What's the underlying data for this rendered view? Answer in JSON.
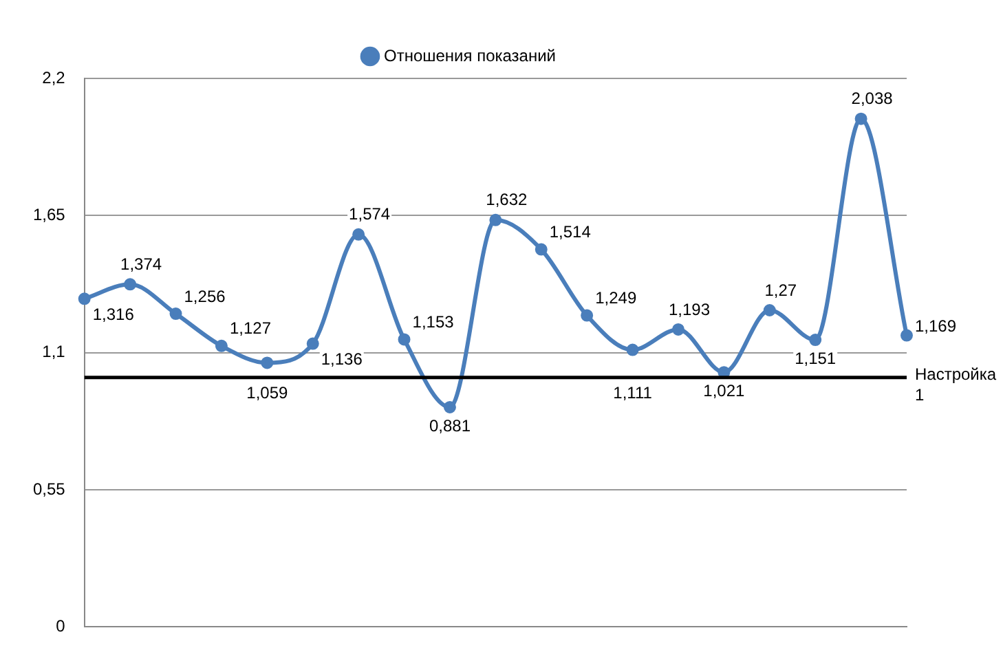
{
  "chart_data": {
    "type": "line",
    "categories": [
      null,
      null,
      null,
      null,
      null,
      null,
      null,
      null,
      null,
      null,
      null,
      null,
      null,
      null,
      null,
      null,
      null,
      null,
      null
    ],
    "series": [
      {
        "name": "Отношения показаний",
        "color": "#4a7ebb",
        "values": [
          1.316,
          1.374,
          1.256,
          1.127,
          1.059,
          1.136,
          1.574,
          1.153,
          0.881,
          1.632,
          1.514,
          1.249,
          1.111,
          1.193,
          1.021,
          1.27,
          1.151,
          2.038,
          1.169
        ],
        "value_labels": [
          "1,316",
          "1,374",
          "1,256",
          "1,127",
          "1,059",
          "1,136",
          "1,574",
          "1,153",
          "0,881",
          "1,632",
          "1,514",
          "1,249",
          "1,111",
          "1,193",
          "1,021",
          "1,27",
          "1,151",
          "2,038",
          "1,169"
        ]
      }
    ],
    "ylim": [
      0,
      2.2
    ],
    "yticks": [
      0,
      {
        "value": 0.55,
        "label": "0,55"
      },
      {
        "value": 1.1,
        "label": "1,1"
      },
      {
        "value": 1.65,
        "label": "1,65"
      },
      {
        "value": 2.2,
        "label": "2,2"
      }
    ],
    "ref_lines": [
      {
        "axis": "y",
        "value": 1,
        "label": "Настройка 1",
        "color": "#000000"
      }
    ],
    "grid": "y",
    "legend": "top",
    "marker": "circle"
  }
}
